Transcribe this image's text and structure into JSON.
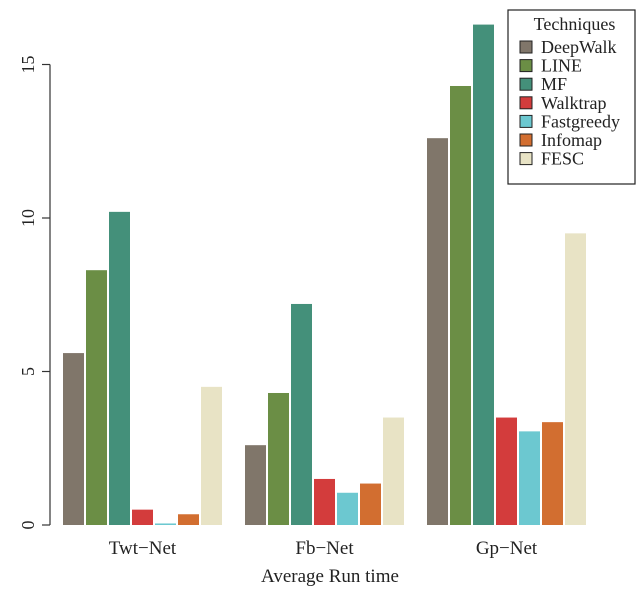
{
  "chart_data": {
    "type": "bar",
    "title": "",
    "xlabel": "Average Run time",
    "ylabel": "",
    "categories": [
      "Twt−Net",
      "Fb−Net",
      "Gp−Net"
    ],
    "series": [
      {
        "name": "DeepWalk",
        "color": "#80766a",
        "values": [
          5.6,
          2.6,
          12.6
        ]
      },
      {
        "name": "LINE",
        "color": "#6b8e45",
        "values": [
          8.3,
          4.3,
          14.3
        ]
      },
      {
        "name": "MF",
        "color": "#44907a",
        "values": [
          10.2,
          7.2,
          16.3
        ]
      },
      {
        "name": "Walktrap",
        "color": "#d33c3c",
        "values": [
          0.5,
          1.5,
          3.5
        ]
      },
      {
        "name": "Fastgreedy",
        "color": "#6cc8d0",
        "values": [
          0.05,
          1.05,
          3.05
        ]
      },
      {
        "name": "Infomap",
        "color": "#d26e30",
        "values": [
          0.35,
          1.35,
          3.35
        ]
      },
      {
        "name": "FESC",
        "color": "#e8e3c5",
        "values": [
          4.5,
          3.5,
          9.5
        ]
      }
    ],
    "yticks": [
      0,
      5,
      10,
      15
    ],
    "ylim": [
      0,
      16.5
    ],
    "legend": {
      "title": "Techniques",
      "position": "top-right"
    },
    "grid": false
  }
}
